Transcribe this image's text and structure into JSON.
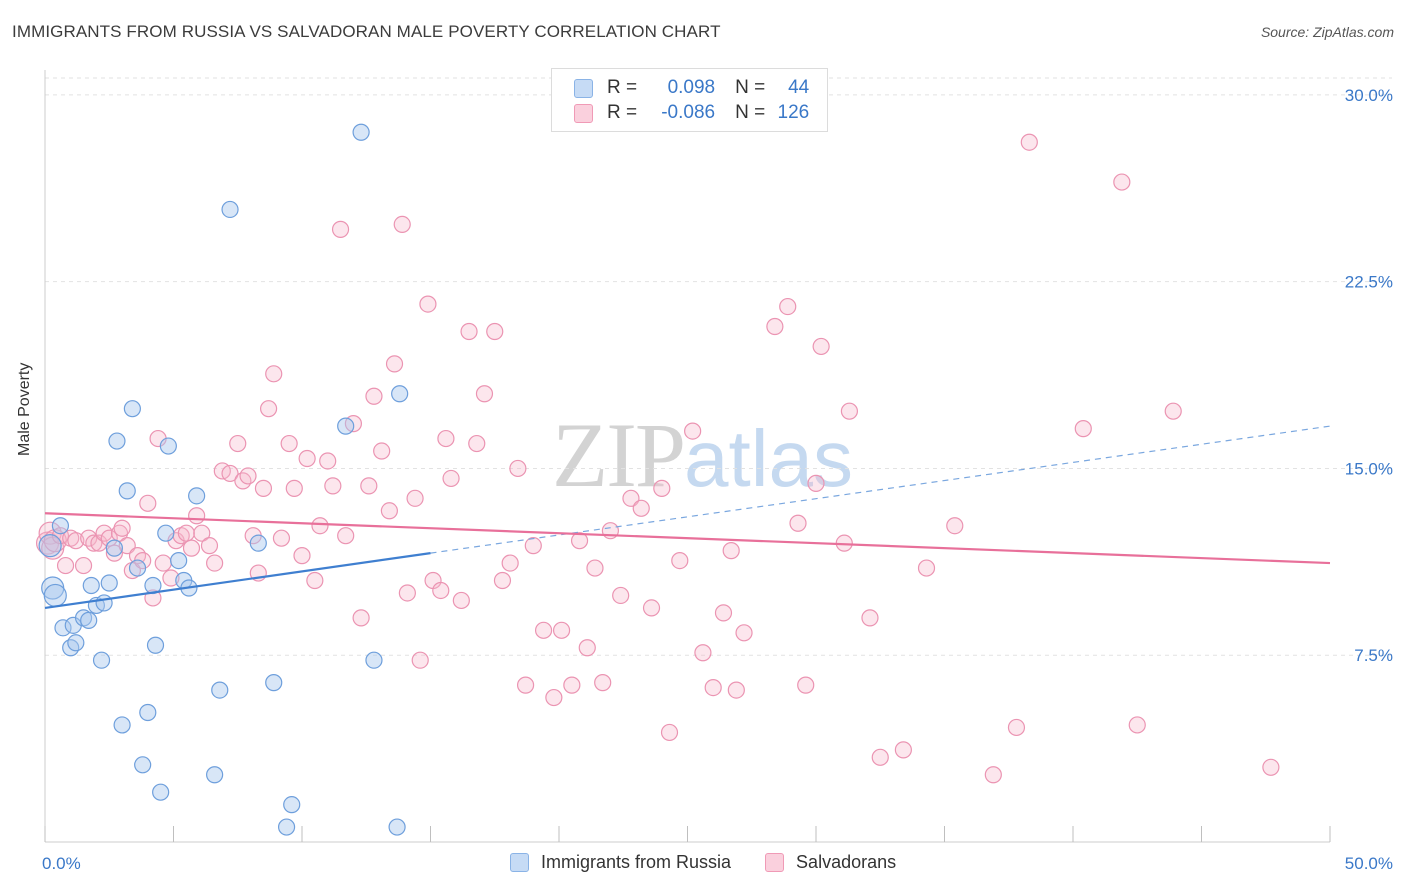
{
  "header": {
    "title": "IMMIGRANTS FROM RUSSIA VS SALVADORAN MALE POVERTY CORRELATION CHART",
    "source": "Source: ZipAtlas.com"
  },
  "watermark": {
    "zip": "ZIP",
    "atlas": "atlas"
  },
  "legend_top": {
    "rows": [
      {
        "r_label": "R =",
        "r_value": "0.098",
        "n_label": "N =",
        "n_value": "44",
        "color": "#a9c8ee"
      },
      {
        "r_label": "R =",
        "r_value": "-0.086",
        "n_label": "N =",
        "n_value": "126",
        "color": "#f6b7cb"
      }
    ]
  },
  "legend_bottom": {
    "items": [
      {
        "label": "Immigrants from Russia",
        "color": "#a9c8ee"
      },
      {
        "label": "Salvadorans",
        "color": "#f6b7cb"
      }
    ]
  },
  "chart_data": {
    "type": "scatter",
    "title": "IMMIGRANTS FROM RUSSIA VS SALVADORAN MALE POVERTY CORRELATION CHART",
    "xlabel": "",
    "ylabel": "Male Poverty",
    "xlim": [
      0,
      50
    ],
    "ylim": [
      0,
      31
    ],
    "x_tick_labels": [
      "0.0%",
      "50.0%"
    ],
    "y_ticks": [
      7.5,
      15.0,
      22.5,
      30.0
    ],
    "y_tick_labels": [
      "7.5%",
      "15.0%",
      "22.5%",
      "30.0%"
    ],
    "grid": true,
    "legend_position": "top-center",
    "colors": {
      "russia": "#3f7fd0",
      "salvadoran": "#e8709a",
      "russia_fill": "#a9c8ee",
      "salvadoran_fill": "#f6b7cb"
    },
    "series": [
      {
        "name": "Immigrants from Russia",
        "trend": {
          "x": [
            0,
            15
          ],
          "y": [
            9.4,
            11.6
          ],
          "dashed_to": [
            50,
            16.7
          ]
        },
        "points": [
          [
            0.2,
            11.9
          ],
          [
            0.3,
            10.2
          ],
          [
            0.4,
            9.9
          ],
          [
            0.6,
            12.7
          ],
          [
            0.7,
            8.6
          ],
          [
            1.0,
            7.8
          ],
          [
            1.1,
            8.7
          ],
          [
            1.2,
            8.0
          ],
          [
            1.5,
            9.0
          ],
          [
            1.7,
            8.9
          ],
          [
            1.8,
            10.3
          ],
          [
            2.0,
            9.5
          ],
          [
            2.2,
            7.3
          ],
          [
            2.3,
            9.6
          ],
          [
            2.5,
            10.4
          ],
          [
            2.7,
            11.8
          ],
          [
            2.8,
            16.1
          ],
          [
            3.0,
            4.7
          ],
          [
            3.2,
            14.1
          ],
          [
            3.4,
            17.4
          ],
          [
            3.6,
            11.0
          ],
          [
            3.8,
            3.1
          ],
          [
            4.0,
            5.2
          ],
          [
            4.2,
            10.3
          ],
          [
            4.3,
            7.9
          ],
          [
            4.5,
            2.0
          ],
          [
            4.7,
            12.4
          ],
          [
            4.8,
            15.9
          ],
          [
            5.2,
            11.3
          ],
          [
            5.4,
            10.5
          ],
          [
            5.6,
            10.2
          ],
          [
            5.9,
            13.9
          ],
          [
            6.6,
            2.7
          ],
          [
            6.8,
            6.1
          ],
          [
            7.2,
            25.4
          ],
          [
            8.3,
            12.0
          ],
          [
            8.9,
            6.4
          ],
          [
            9.4,
            0.6
          ],
          [
            9.6,
            1.5
          ],
          [
            11.7,
            16.7
          ],
          [
            12.3,
            28.5
          ],
          [
            12.8,
            7.3
          ],
          [
            13.7,
            0.6
          ],
          [
            13.8,
            18.0
          ]
        ]
      },
      {
        "name": "Salvadorans",
        "trend": {
          "x": [
            0,
            50
          ],
          "y": [
            13.2,
            11.2
          ]
        },
        "points": [
          [
            0.1,
            12.0
          ],
          [
            0.2,
            12.4
          ],
          [
            0.3,
            11.8
          ],
          [
            0.4,
            12.1
          ],
          [
            0.6,
            12.3
          ],
          [
            0.8,
            11.1
          ],
          [
            1.0,
            12.2
          ],
          [
            1.2,
            12.1
          ],
          [
            1.5,
            11.1
          ],
          [
            1.7,
            12.2
          ],
          [
            1.9,
            12.0
          ],
          [
            2.1,
            12.0
          ],
          [
            2.3,
            12.4
          ],
          [
            2.5,
            12.2
          ],
          [
            2.7,
            11.6
          ],
          [
            2.9,
            12.4
          ],
          [
            3.0,
            12.6
          ],
          [
            3.2,
            11.9
          ],
          [
            3.4,
            10.9
          ],
          [
            3.6,
            11.5
          ],
          [
            3.8,
            11.3
          ],
          [
            4.0,
            13.6
          ],
          [
            4.2,
            9.8
          ],
          [
            4.4,
            16.2
          ],
          [
            4.6,
            11.2
          ],
          [
            4.9,
            10.6
          ],
          [
            5.1,
            12.1
          ],
          [
            5.3,
            12.3
          ],
          [
            5.5,
            12.4
          ],
          [
            5.7,
            11.8
          ],
          [
            5.9,
            13.1
          ],
          [
            6.1,
            12.4
          ],
          [
            6.4,
            11.9
          ],
          [
            6.6,
            11.2
          ],
          [
            6.9,
            14.9
          ],
          [
            7.2,
            14.8
          ],
          [
            7.5,
            16.0
          ],
          [
            7.7,
            14.5
          ],
          [
            7.9,
            14.7
          ],
          [
            8.1,
            12.3
          ],
          [
            8.3,
            10.8
          ],
          [
            8.5,
            14.2
          ],
          [
            8.7,
            17.4
          ],
          [
            8.9,
            18.8
          ],
          [
            9.2,
            12.2
          ],
          [
            9.5,
            16.0
          ],
          [
            9.7,
            14.2
          ],
          [
            10.0,
            11.5
          ],
          [
            10.2,
            15.4
          ],
          [
            10.5,
            10.5
          ],
          [
            10.7,
            12.7
          ],
          [
            11.0,
            15.3
          ],
          [
            11.2,
            14.3
          ],
          [
            11.5,
            24.6
          ],
          [
            11.7,
            12.3
          ],
          [
            12.0,
            16.8
          ],
          [
            12.3,
            9.0
          ],
          [
            12.6,
            14.3
          ],
          [
            12.8,
            17.9
          ],
          [
            13.1,
            15.7
          ],
          [
            13.4,
            13.3
          ],
          [
            13.6,
            19.2
          ],
          [
            13.9,
            24.8
          ],
          [
            14.1,
            10.0
          ],
          [
            14.4,
            13.8
          ],
          [
            14.6,
            7.3
          ],
          [
            14.9,
            21.6
          ],
          [
            15.1,
            10.5
          ],
          [
            15.4,
            10.1
          ],
          [
            15.6,
            16.2
          ],
          [
            15.8,
            14.6
          ],
          [
            16.2,
            9.7
          ],
          [
            16.5,
            20.5
          ],
          [
            16.8,
            16.0
          ],
          [
            17.1,
            18.0
          ],
          [
            17.5,
            20.5
          ],
          [
            17.8,
            10.5
          ],
          [
            18.1,
            11.2
          ],
          [
            18.4,
            15.0
          ],
          [
            18.7,
            6.3
          ],
          [
            19.0,
            11.9
          ],
          [
            19.4,
            8.5
          ],
          [
            19.8,
            5.8
          ],
          [
            20.1,
            8.5
          ],
          [
            20.5,
            6.3
          ],
          [
            20.8,
            12.1
          ],
          [
            21.1,
            7.8
          ],
          [
            21.4,
            11.0
          ],
          [
            21.7,
            6.4
          ],
          [
            22.0,
            12.5
          ],
          [
            22.4,
            9.9
          ],
          [
            22.8,
            13.8
          ],
          [
            23.2,
            13.4
          ],
          [
            23.6,
            9.4
          ],
          [
            24.0,
            14.2
          ],
          [
            24.3,
            4.4
          ],
          [
            24.7,
            11.3
          ],
          [
            25.2,
            16.5
          ],
          [
            25.6,
            7.6
          ],
          [
            26.0,
            6.2
          ],
          [
            26.4,
            9.2
          ],
          [
            26.7,
            11.7
          ],
          [
            26.9,
            6.1
          ],
          [
            27.2,
            8.4
          ],
          [
            28.4,
            20.7
          ],
          [
            28.9,
            21.5
          ],
          [
            29.3,
            12.8
          ],
          [
            29.6,
            6.3
          ],
          [
            30.0,
            14.4
          ],
          [
            30.2,
            19.9
          ],
          [
            31.1,
            12.0
          ],
          [
            31.3,
            17.3
          ],
          [
            32.1,
            9.0
          ],
          [
            32.5,
            3.4
          ],
          [
            33.4,
            3.7
          ],
          [
            34.3,
            11.0
          ],
          [
            35.4,
            12.7
          ],
          [
            36.9,
            2.7
          ],
          [
            37.8,
            4.6
          ],
          [
            38.3,
            28.1
          ],
          [
            40.4,
            16.6
          ],
          [
            41.9,
            26.5
          ],
          [
            42.5,
            4.7
          ],
          [
            43.9,
            17.3
          ],
          [
            47.7,
            3.0
          ]
        ]
      }
    ]
  }
}
